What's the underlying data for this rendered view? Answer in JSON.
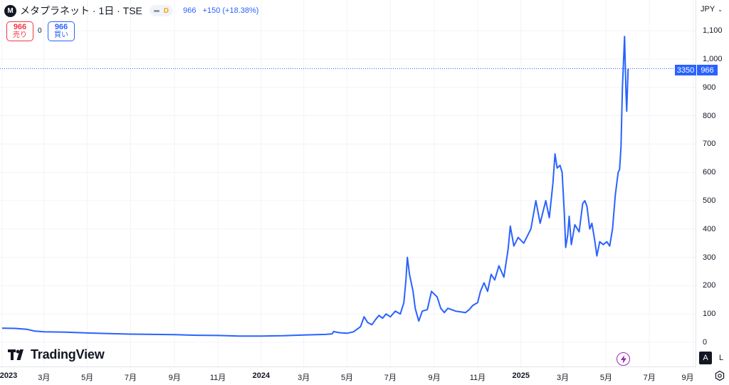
{
  "header": {
    "logo_letter": "M",
    "symbol_title": "メタプラネット · 1日 · TSE",
    "interval_badge": "D",
    "last_price": "966",
    "change": "+150 (+18.38%)"
  },
  "trade": {
    "sell_price": "966",
    "sell_label": "売り",
    "spread": "0",
    "buy_price": "966",
    "buy_label": "買い"
  },
  "branding": {
    "name": "TradingView"
  },
  "axis_controls": {
    "currency": "JPY",
    "auto_label": "A",
    "log_label": "L"
  },
  "price_tags": {
    "countdown": "3350",
    "last": "966"
  },
  "colors": {
    "line": "#2962ff",
    "last_price_line": "#2962ff",
    "grid": "#f0f3fa",
    "sell": "#f23645",
    "buy": "#2962ff",
    "badge": "#f7a600",
    "bolt": "#9c27b0"
  },
  "icons": {
    "settings": "gear-icon",
    "alert": "lightning-icon",
    "currency_menu": "chevron-down-icon"
  },
  "chart_data": {
    "type": "line",
    "title": "",
    "xlabel": "",
    "ylabel": "",
    "ylim": [
      -30,
      1165
    ],
    "xlim": [
      "2023-01-01",
      "2025-09-01"
    ],
    "y_ticks": [
      0,
      100,
      200,
      300,
      400,
      500,
      600,
      700,
      800,
      900,
      1000,
      1100
    ],
    "y_tick_labels": [
      "0",
      "100",
      "200",
      "300",
      "400",
      "500",
      "600",
      "700",
      "800",
      "900",
      "1,000",
      "1,100"
    ],
    "x_ticks": [
      {
        "date": "2023-01-01",
        "label": "2023",
        "year": true
      },
      {
        "date": "2023-03-01",
        "label": "3月",
        "year": false
      },
      {
        "date": "2023-05-01",
        "label": "5月",
        "year": false
      },
      {
        "date": "2023-07-01",
        "label": "7月",
        "year": false
      },
      {
        "date": "2023-09-01",
        "label": "9月",
        "year": false
      },
      {
        "date": "2023-11-01",
        "label": "11月",
        "year": false
      },
      {
        "date": "2024-01-01",
        "label": "2024",
        "year": true
      },
      {
        "date": "2024-03-01",
        "label": "3月",
        "year": false
      },
      {
        "date": "2024-05-01",
        "label": "5月",
        "year": false
      },
      {
        "date": "2024-07-01",
        "label": "7月",
        "year": false
      },
      {
        "date": "2024-09-01",
        "label": "9月",
        "year": false
      },
      {
        "date": "2024-11-01",
        "label": "11月",
        "year": false
      },
      {
        "date": "2025-01-01",
        "label": "2025",
        "year": true
      },
      {
        "date": "2025-03-01",
        "label": "3月",
        "year": false
      },
      {
        "date": "2025-05-01",
        "label": "5月",
        "year": false
      },
      {
        "date": "2025-07-01",
        "label": "7月",
        "year": false
      },
      {
        "date": "2025-09-01",
        "label": "9月",
        "year": false
      }
    ],
    "grid": true,
    "last_value": 966,
    "series": [
      {
        "points": [
          [
            "2023-01-01",
            50
          ],
          [
            "2023-01-20",
            49
          ],
          [
            "2023-02-05",
            46
          ],
          [
            "2023-02-15",
            40
          ],
          [
            "2023-03-01",
            37
          ],
          [
            "2023-04-01",
            36
          ],
          [
            "2023-05-01",
            33
          ],
          [
            "2023-06-01",
            31
          ],
          [
            "2023-07-01",
            29
          ],
          [
            "2023-08-01",
            28
          ],
          [
            "2023-09-01",
            27
          ],
          [
            "2023-10-01",
            25
          ],
          [
            "2023-11-01",
            24
          ],
          [
            "2023-12-01",
            22
          ],
          [
            "2024-01-01",
            22
          ],
          [
            "2024-02-01",
            23
          ],
          [
            "2024-03-01",
            26
          ],
          [
            "2024-04-01",
            28
          ],
          [
            "2024-04-10",
            30
          ],
          [
            "2024-04-12",
            38
          ],
          [
            "2024-04-20",
            34
          ],
          [
            "2024-05-01",
            32
          ],
          [
            "2024-05-10",
            37
          ],
          [
            "2024-05-20",
            55
          ],
          [
            "2024-05-25",
            90
          ],
          [
            "2024-05-30",
            70
          ],
          [
            "2024-06-05",
            62
          ],
          [
            "2024-06-10",
            80
          ],
          [
            "2024-06-15",
            95
          ],
          [
            "2024-06-20",
            85
          ],
          [
            "2024-06-25",
            100
          ],
          [
            "2024-07-01",
            90
          ],
          [
            "2024-07-08",
            110
          ],
          [
            "2024-07-15",
            100
          ],
          [
            "2024-07-20",
            140
          ],
          [
            "2024-07-23",
            220
          ],
          [
            "2024-07-25",
            300
          ],
          [
            "2024-07-28",
            240
          ],
          [
            "2024-08-02",
            180
          ],
          [
            "2024-08-05",
            120
          ],
          [
            "2024-08-10",
            75
          ],
          [
            "2024-08-15",
            110
          ],
          [
            "2024-08-22",
            115
          ],
          [
            "2024-08-28",
            180
          ],
          [
            "2024-09-05",
            160
          ],
          [
            "2024-09-10",
            120
          ],
          [
            "2024-09-15",
            105
          ],
          [
            "2024-09-20",
            120
          ],
          [
            "2024-10-01",
            110
          ],
          [
            "2024-10-15",
            105
          ],
          [
            "2024-10-20",
            115
          ],
          [
            "2024-10-25",
            130
          ],
          [
            "2024-11-01",
            140
          ],
          [
            "2024-11-05",
            180
          ],
          [
            "2024-11-10",
            210
          ],
          [
            "2024-11-15",
            180
          ],
          [
            "2024-11-20",
            240
          ],
          [
            "2024-11-25",
            220
          ],
          [
            "2024-12-01",
            270
          ],
          [
            "2024-12-08",
            230
          ],
          [
            "2024-12-14",
            330
          ],
          [
            "2024-12-17",
            410
          ],
          [
            "2024-12-22",
            340
          ],
          [
            "2024-12-28",
            370
          ],
          [
            "2025-01-05",
            350
          ],
          [
            "2025-01-15",
            400
          ],
          [
            "2025-01-22",
            500
          ],
          [
            "2025-01-28",
            420
          ],
          [
            "2025-02-05",
            500
          ],
          [
            "2025-02-10",
            440
          ],
          [
            "2025-02-15",
            560
          ],
          [
            "2025-02-18",
            665
          ],
          [
            "2025-02-21",
            615
          ],
          [
            "2025-02-25",
            625
          ],
          [
            "2025-02-28",
            600
          ],
          [
            "2025-03-03",
            460
          ],
          [
            "2025-03-05",
            335
          ],
          [
            "2025-03-08",
            380
          ],
          [
            "2025-03-10",
            445
          ],
          [
            "2025-03-13",
            345
          ],
          [
            "2025-03-18",
            415
          ],
          [
            "2025-03-24",
            390
          ],
          [
            "2025-03-29",
            490
          ],
          [
            "2025-04-01",
            500
          ],
          [
            "2025-04-04",
            480
          ],
          [
            "2025-04-08",
            400
          ],
          [
            "2025-04-11",
            420
          ],
          [
            "2025-04-15",
            360
          ],
          [
            "2025-04-18",
            305
          ],
          [
            "2025-04-22",
            355
          ],
          [
            "2025-04-27",
            345
          ],
          [
            "2025-05-02",
            355
          ],
          [
            "2025-05-06",
            340
          ],
          [
            "2025-05-10",
            400
          ],
          [
            "2025-05-14",
            520
          ],
          [
            "2025-05-18",
            600
          ],
          [
            "2025-05-20",
            610
          ],
          [
            "2025-05-22",
            690
          ],
          [
            "2025-05-24",
            900
          ],
          [
            "2025-05-27",
            1080
          ],
          [
            "2025-05-29",
            880
          ],
          [
            "2025-05-30",
            816
          ],
          [
            "2025-06-01",
            966
          ]
        ]
      }
    ]
  }
}
